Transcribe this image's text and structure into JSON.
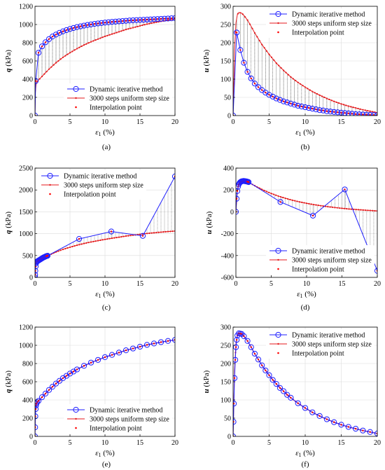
{
  "legend": {
    "dynamic": "Dynamic iterative method",
    "uniform": "3000 steps uniform step size",
    "interp": "Interpolation point"
  },
  "colors": {
    "dynamic": "#1f1fff",
    "uniform": "#e41a1c",
    "interp": "#ff0000",
    "connector": "#333333",
    "grid": "#dcdcdc"
  },
  "xlabel": {
    "symbol": "ε",
    "subscript": "1",
    "unit": " (%)"
  },
  "chart_data": [
    {
      "type": "line",
      "panel_label": "(a)",
      "ylabel": {
        "symbol": "q",
        "unit": "(kPa)"
      },
      "xlim": [
        0,
        20
      ],
      "ylim": [
        0,
        1200
      ],
      "xticks": [
        0,
        5,
        10,
        15,
        20
      ],
      "yticks": [
        0,
        200,
        400,
        600,
        800,
        1000,
        1200
      ],
      "legend_position": "lower-right",
      "series": [
        {
          "name": "Dynamic iterative method",
          "x": [
            0,
            0.1,
            0.5,
            1,
            1.5,
            2,
            2.5,
            3,
            3.5,
            4,
            4.5,
            5,
            5.5,
            6,
            6.5,
            7,
            7.5,
            8,
            8.5,
            9,
            9.5,
            10,
            10.5,
            11,
            11.5,
            12,
            12.5,
            13,
            13.5,
            14,
            14.5,
            15,
            15.5,
            16,
            16.5,
            17,
            17.5,
            18,
            18.5,
            19,
            19.5,
            20
          ],
          "y": [
            0,
            380,
            690,
            760,
            805,
            840,
            868,
            890,
            909,
            925,
            939,
            951,
            962,
            972,
            980,
            988,
            995,
            1001,
            1007,
            1012,
            1017,
            1021,
            1025,
            1029,
            1032,
            1035,
            1038,
            1041,
            1044,
            1046,
            1048,
            1050,
            1052,
            1054,
            1056,
            1058,
            1060,
            1062,
            1064,
            1066,
            1068,
            1070
          ]
        },
        {
          "name": "3000 steps uniform step size",
          "x": [
            0,
            0.05,
            0.15,
            0.3,
            0.5,
            1,
            2,
            3,
            4,
            5,
            6,
            7,
            8,
            9,
            10,
            11,
            12,
            13,
            14,
            15,
            16,
            17,
            18,
            19,
            20
          ],
          "y": [
            0,
            250,
            340,
            375,
            390,
            430,
            510,
            580,
            640,
            690,
            735,
            775,
            810,
            840,
            870,
            895,
            920,
            945,
            965,
            985,
            1005,
            1020,
            1035,
            1048,
            1060
          ]
        }
      ]
    },
    {
      "type": "line",
      "panel_label": "(b)",
      "ylabel": {
        "symbol": "u",
        "unit": "(kPa)"
      },
      "xlim": [
        0,
        20
      ],
      "ylim": [
        0,
        300
      ],
      "xticks": [
        0,
        5,
        10,
        15,
        20
      ],
      "yticks": [
        0,
        50,
        100,
        150,
        200,
        250,
        300
      ],
      "legend_position": "top-right",
      "series": [
        {
          "name": "Dynamic iterative method",
          "x": [
            0,
            0.5,
            1,
            1.5,
            2,
            2.5,
            3,
            3.5,
            4,
            4.5,
            5,
            5.5,
            6,
            6.5,
            7,
            7.5,
            8,
            8.5,
            9,
            9.5,
            10,
            10.5,
            11,
            11.5,
            12,
            12.5,
            13,
            13.5,
            14,
            14.5,
            15,
            15.5,
            16,
            16.5,
            17,
            17.5,
            18,
            18.5,
            19,
            19.5,
            20
          ],
          "y": [
            0,
            228,
            180,
            145,
            120,
            102,
            88,
            78,
            70,
            63,
            57,
            52,
            47,
            43,
            39,
            36,
            33,
            30,
            27,
            25,
            23,
            21,
            19,
            17,
            15,
            14,
            12,
            11,
            10,
            9,
            8,
            7,
            6,
            5,
            4,
            3.5,
            3,
            2.5,
            2,
            1.5,
            1
          ]
        },
        {
          "name": "3000 steps uniform step size",
          "x": [
            0,
            0.2,
            0.4,
            0.6,
            0.8,
            1,
            1.2,
            1.5,
            2,
            2.5,
            3,
            4,
            5,
            6,
            7,
            8,
            9,
            10,
            11,
            12,
            13,
            14,
            15,
            16,
            17,
            18,
            19,
            20
          ],
          "y": [
            0,
            180,
            255,
            278,
            283,
            282,
            281,
            275,
            262,
            245,
            227,
            195,
            168,
            144,
            124,
            106,
            91,
            78,
            66,
            56,
            47,
            39,
            32,
            26,
            21,
            16,
            12,
            8
          ]
        }
      ]
    },
    {
      "type": "line",
      "panel_label": "(c)",
      "ylabel": {
        "symbol": "q",
        "unit": "(kPa)"
      },
      "xlim": [
        0,
        20
      ],
      "ylim": [
        0,
        2500
      ],
      "xticks": [
        0,
        5,
        10,
        15,
        20
      ],
      "yticks": [
        0,
        500,
        1000,
        1500,
        2000,
        2500
      ],
      "legend_position": "top-left",
      "series": [
        {
          "name": "Dynamic iterative method",
          "x": [
            0,
            0.02,
            0.05,
            0.1,
            0.15,
            0.2,
            0.3,
            0.4,
            0.5,
            0.6,
            0.7,
            0.8,
            0.9,
            1.0,
            1.1,
            1.2,
            1.3,
            1.4,
            1.5,
            1.6,
            1.7,
            1.8,
            6.3,
            10.9,
            15.4,
            20
          ],
          "y": [
            0,
            60,
            150,
            250,
            320,
            350,
            365,
            375,
            385,
            395,
            405,
            415,
            425,
            435,
            445,
            455,
            462,
            470,
            478,
            485,
            490,
            495,
            880,
            1050,
            950,
            2310
          ]
        },
        {
          "name": "3000 steps uniform step size",
          "x": [
            0,
            0.05,
            0.15,
            0.3,
            0.5,
            1,
            2,
            3,
            4,
            5,
            6,
            7,
            8,
            9,
            10,
            11,
            12,
            13,
            14,
            15,
            16,
            17,
            18,
            19,
            20
          ],
          "y": [
            0,
            250,
            340,
            375,
            390,
            430,
            510,
            580,
            640,
            690,
            735,
            775,
            810,
            840,
            870,
            895,
            920,
            945,
            965,
            985,
            1005,
            1020,
            1035,
            1048,
            1060
          ]
        }
      ]
    },
    {
      "type": "line",
      "panel_label": "(d)",
      "ylabel": {
        "symbol": "u",
        "unit": "(kPa)"
      },
      "xlim": [
        0,
        20
      ],
      "ylim": [
        -600,
        400
      ],
      "xticks": [
        0,
        5,
        10,
        15,
        20
      ],
      "yticks": [
        -600,
        -400,
        -200,
        0,
        200,
        400
      ],
      "legend_position": "lower-right",
      "series": [
        {
          "name": "Dynamic iterative method",
          "x": [
            0,
            0.1,
            0.2,
            0.3,
            0.4,
            0.5,
            0.6,
            0.7,
            0.8,
            0.9,
            1.0,
            1.1,
            1.2,
            1.3,
            1.4,
            1.5,
            1.6,
            1.7,
            1.8,
            6.3,
            10.9,
            15.4,
            20
          ],
          "y": [
            0,
            120,
            190,
            230,
            250,
            262,
            270,
            275,
            278,
            280,
            281,
            282,
            281,
            280,
            279,
            278,
            276,
            274,
            272,
            90,
            -35,
            205,
            -540
          ]
        },
        {
          "name": "3000 steps uniform step size",
          "x": [
            0,
            0.2,
            0.4,
            0.6,
            0.8,
            1,
            1.2,
            1.5,
            2,
            2.5,
            3,
            4,
            5,
            6,
            7,
            8,
            9,
            10,
            11,
            12,
            13,
            14,
            15,
            16,
            17,
            18,
            19,
            20
          ],
          "y": [
            0,
            180,
            255,
            278,
            283,
            282,
            281,
            275,
            262,
            245,
            227,
            195,
            168,
            144,
            124,
            106,
            91,
            78,
            66,
            56,
            47,
            39,
            32,
            26,
            21,
            16,
            12,
            8
          ]
        }
      ]
    },
    {
      "type": "line",
      "panel_label": "(e)",
      "ylabel": {
        "symbol": "q",
        "unit": "(kPa)"
      },
      "xlim": [
        0,
        20
      ],
      "ylim": [
        0,
        1200
      ],
      "xticks": [
        0,
        5,
        10,
        15,
        20
      ],
      "yticks": [
        0,
        200,
        400,
        600,
        800,
        1000,
        1200
      ],
      "legend_position": "lower-right",
      "series": [
        {
          "name": "Dynamic iterative method",
          "x": [
            0,
            0.02,
            0.05,
            0.1,
            0.15,
            0.2,
            0.3,
            0.5,
            1,
            1.5,
            2,
            2.5,
            3,
            3.5,
            4,
            4.5,
            5,
            5.5,
            6,
            7,
            8,
            9,
            10,
            11,
            12,
            13,
            14,
            15,
            16,
            17,
            18,
            19,
            20
          ],
          "y": [
            0,
            100,
            220,
            300,
            340,
            360,
            375,
            390,
            430,
            470,
            510,
            545,
            580,
            610,
            640,
            665,
            690,
            712,
            735,
            775,
            810,
            840,
            870,
            895,
            920,
            945,
            965,
            985,
            1005,
            1020,
            1035,
            1048,
            1060
          ]
        },
        {
          "name": "3000 steps uniform step size",
          "x": [
            0,
            0.05,
            0.15,
            0.3,
            0.5,
            1,
            2,
            3,
            4,
            5,
            6,
            7,
            8,
            9,
            10,
            11,
            12,
            13,
            14,
            15,
            16,
            17,
            18,
            19,
            20
          ],
          "y": [
            0,
            250,
            340,
            375,
            390,
            430,
            510,
            580,
            640,
            690,
            735,
            775,
            810,
            840,
            870,
            895,
            920,
            945,
            965,
            985,
            1005,
            1020,
            1035,
            1048,
            1060
          ]
        }
      ]
    },
    {
      "type": "line",
      "panel_label": "(f)",
      "ylabel": {
        "symbol": "u",
        "unit": "(kPa)"
      },
      "xlim": [
        0,
        20
      ],
      "ylim": [
        0,
        300
      ],
      "xticks": [
        0,
        5,
        10,
        15,
        20
      ],
      "yticks": [
        0,
        50,
        100,
        150,
        200,
        250,
        300
      ],
      "legend_position": "top-right",
      "series": [
        {
          "name": "Dynamic iterative method",
          "x": [
            0,
            0.05,
            0.1,
            0.2,
            0.3,
            0.4,
            0.5,
            0.6,
            0.8,
            1,
            1.2,
            1.5,
            2,
            2.5,
            3,
            3.5,
            4,
            4.5,
            5,
            5.5,
            6,
            6.5,
            7,
            7.5,
            8,
            9,
            10,
            11,
            12,
            13,
            14,
            15,
            16,
            17,
            18,
            19,
            20
          ],
          "y": [
            0,
            40,
            90,
            160,
            210,
            245,
            265,
            277,
            283,
            282,
            281,
            275,
            262,
            245,
            227,
            211,
            195,
            181,
            168,
            155,
            144,
            133,
            124,
            114,
            106,
            91,
            78,
            66,
            56,
            47,
            39,
            32,
            26,
            21,
            16,
            12,
            8
          ]
        },
        {
          "name": "3000 steps uniform step size",
          "x": [
            0,
            0.2,
            0.4,
            0.6,
            0.8,
            1,
            1.2,
            1.5,
            2,
            2.5,
            3,
            4,
            5,
            6,
            7,
            8,
            9,
            10,
            11,
            12,
            13,
            14,
            15,
            16,
            17,
            18,
            19,
            20
          ],
          "y": [
            0,
            180,
            255,
            278,
            283,
            282,
            281,
            275,
            262,
            245,
            227,
            195,
            168,
            144,
            124,
            106,
            91,
            78,
            66,
            56,
            47,
            39,
            32,
            26,
            21,
            16,
            12,
            8
          ]
        }
      ]
    }
  ]
}
